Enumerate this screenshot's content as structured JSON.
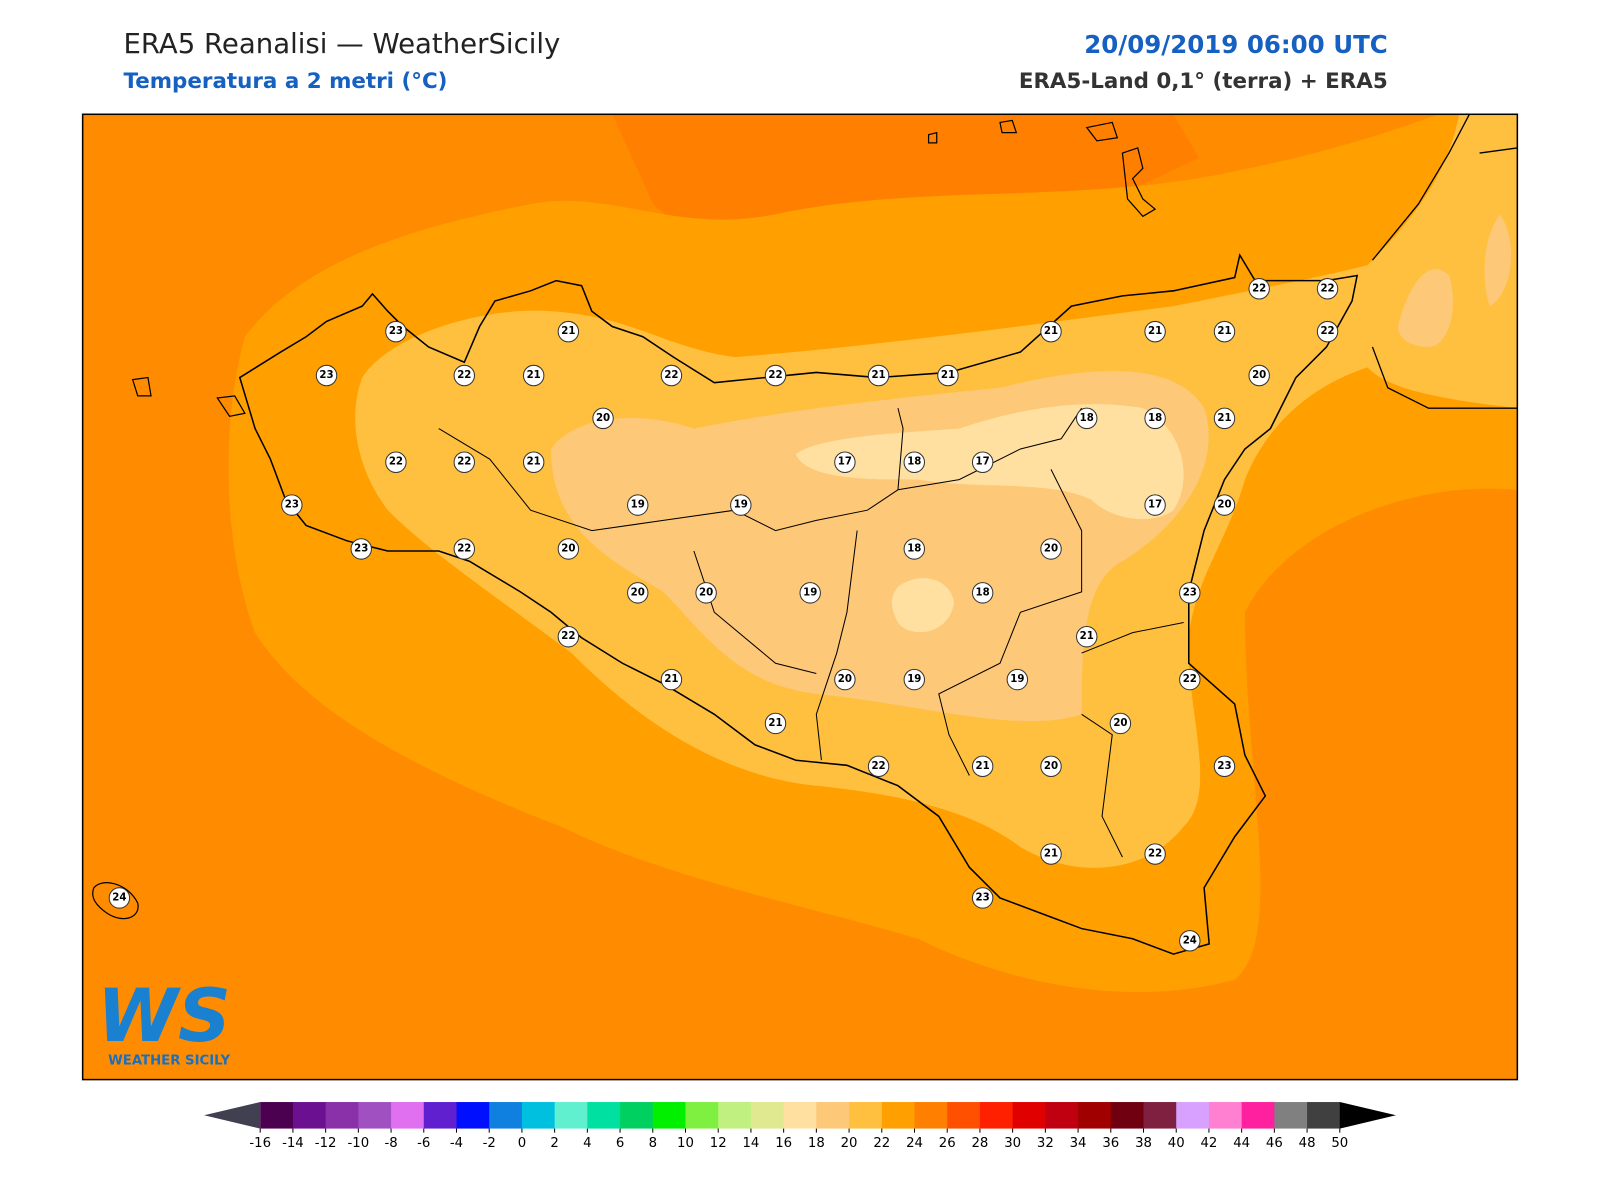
{
  "header": {
    "title": "ERA5 Reanalisi — WeatherSicily",
    "subtitle": "Temperatura a 2 metri (°C)",
    "datetime": "20/09/2019 06:00 UTC",
    "source": "ERA5-Land 0,1° (terra) + ERA5"
  },
  "map": {
    "temperature_labels": [
      23,
      21,
      23,
      22,
      21,
      22,
      22,
      21,
      21,
      21,
      21,
      21,
      22,
      22,
      22,
      20,
      20,
      18,
      18,
      21,
      22,
      22,
      21,
      17,
      18,
      17,
      23,
      19,
      19,
      17,
      20,
      23,
      22,
      20,
      18,
      20,
      20,
      20,
      19,
      18,
      23,
      22,
      21,
      21,
      20,
      19,
      19,
      22,
      21,
      20,
      22,
      21,
      20,
      23,
      21,
      22,
      23,
      24,
      24
    ]
  },
  "logo": {
    "mark": "WS",
    "name": "WEATHER SICILY"
  },
  "colorbar": {
    "ticks": [
      -16,
      -14,
      -12,
      -10,
      -8,
      -6,
      -4,
      -2,
      0,
      2,
      4,
      6,
      8,
      10,
      12,
      14,
      16,
      18,
      20,
      22,
      24,
      26,
      28,
      30,
      32,
      34,
      36,
      38,
      40,
      42,
      44,
      46,
      48,
      50
    ],
    "colors": [
      "#4b0050",
      "#6a1090",
      "#8a30a8",
      "#a050c0",
      "#e070f0",
      "#6020d0",
      "#0010ff",
      "#1080e0",
      "#00c0e0",
      "#60f0d0",
      "#00e0a0",
      "#00d060",
      "#00f000",
      "#80f040",
      "#c0f080",
      "#e0e890",
      "#ffe0a0",
      "#fdc877",
      "#ffc040",
      "#ffa000",
      "#ff8000",
      "#ff5000",
      "#ff2000",
      "#e00000",
      "#c00010",
      "#a00000",
      "#700010",
      "#802040",
      "#d8a0ff",
      "#ff80d0",
      "#ff20a0",
      "#808080",
      "#404040"
    ],
    "under_color": "#404050",
    "over_color": "#000000"
  }
}
